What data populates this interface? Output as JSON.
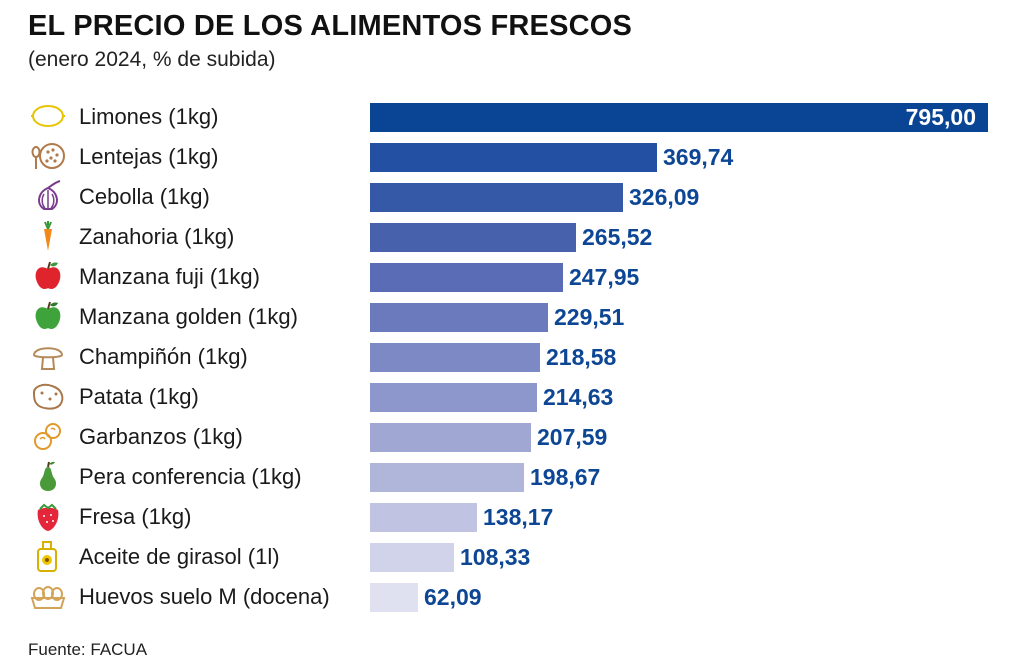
{
  "header": {
    "title": "EL PRECIO DE LOS ALIMENTOS FRESCOS",
    "subtitle": "(enero 2024, % de subida)"
  },
  "footer": {
    "source": "Fuente: FACUA"
  },
  "colors": {
    "value_text": "#0d4694",
    "bar_scale": [
      "#0a4595",
      "#2350a2",
      "#3558a7",
      "#4761ad",
      "#5a6cb5",
      "#6b7abd",
      "#7d89c4",
      "#8e97cb",
      "#a0a7d3",
      "#b0b5da",
      "#c0c4e2",
      "#d0d3e9",
      "#dfe1f0"
    ]
  },
  "chart_data": {
    "type": "bar",
    "orientation": "horizontal",
    "title": "EL PRECIO DE LOS ALIMENTOS FRESCOS",
    "subtitle": "(enero 2024, % de subida)",
    "xlim": [
      0,
      795
    ],
    "grid": false,
    "legend": "none",
    "categories": [
      "Limones (1kg)",
      "Lentejas (1kg)",
      "Cebolla (1kg)",
      "Zanahoria (1kg)",
      "Manzana fuji (1kg)",
      "Manzana golden (1kg)",
      "Champiñón (1kg)",
      "Patata (1kg)",
      "Garbanzos (1kg)",
      "Pera conferencia (1kg)",
      "Fresa (1kg)",
      "Aceite de girasol (1l)",
      "Huevos suelo M (docena)"
    ],
    "values": [
      795.0,
      369.74,
      326.09,
      265.52,
      247.95,
      229.51,
      218.58,
      214.63,
      207.59,
      198.67,
      138.17,
      108.33,
      62.09
    ],
    "value_labels": [
      "795,00",
      "369,74",
      "326,09",
      "265,52",
      "247,95",
      "229,51",
      "218,58",
      "214,63",
      "207,59",
      "198,67",
      "138,17",
      "108,33",
      "62,09"
    ],
    "icons": [
      "lemon-icon",
      "lentils-icon",
      "onion-icon",
      "carrot-icon",
      "red-apple-icon",
      "green-apple-icon",
      "mushroom-icon",
      "potato-icon",
      "chickpeas-icon",
      "pear-icon",
      "strawberry-icon",
      "sunflower-oil-icon",
      "eggs-icon"
    ]
  }
}
